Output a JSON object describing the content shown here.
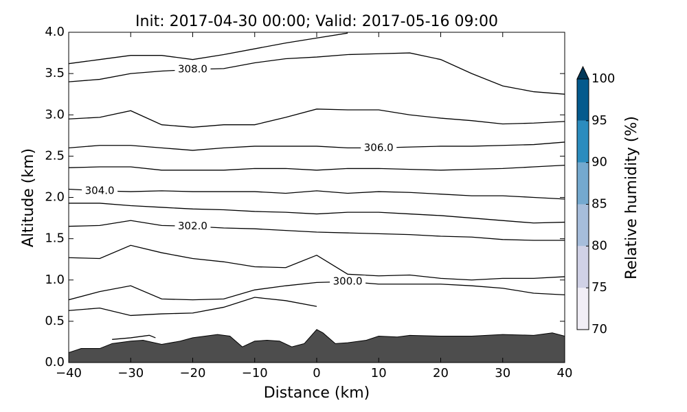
{
  "chart_data": {
    "type": "contour",
    "title": "Init: 2017-04-30 00:00; Valid: 2017-05-16 09:00",
    "xlabel": "Distance (km)",
    "ylabel": "Altitude (km)",
    "xlim": [
      -40,
      40
    ],
    "ylim": [
      0,
      4
    ],
    "xticks": [
      {
        "value": -40,
        "label": "−40"
      },
      {
        "value": -30,
        "label": "−30"
      },
      {
        "value": -20,
        "label": "−20"
      },
      {
        "value": -10,
        "label": "−10"
      },
      0,
      10,
      20,
      30,
      40
    ],
    "yticks": [
      {
        "value": 0,
        "label": "0.0"
      },
      {
        "value": 0.5,
        "label": "0.5"
      },
      {
        "value": 1,
        "label": "1.0"
      },
      {
        "value": 1.5,
        "label": "1.5"
      },
      {
        "value": 2,
        "label": "2.0"
      },
      {
        "value": 2.5,
        "label": "2.5"
      },
      {
        "value": 3,
        "label": "3.0"
      },
      {
        "value": 3.5,
        "label": "3.5"
      },
      {
        "value": 4,
        "label": "4.0"
      }
    ],
    "x": [
      -40,
      -35,
      -30,
      -25,
      -20,
      -15,
      -10,
      -5,
      0,
      5,
      10,
      15,
      20,
      25,
      30,
      35,
      40
    ],
    "line_color": "#000000",
    "series": [
      {
        "values": [
          3.62,
          3.67,
          3.72,
          3.72,
          3.67,
          3.73,
          3.8,
          3.87,
          3.93,
          3.99,
          null,
          null,
          null,
          null,
          null,
          null,
          null
        ]
      },
      {
        "name": "308.0",
        "values": [
          3.4,
          3.43,
          3.5,
          3.53,
          3.55,
          3.56,
          3.63,
          3.68,
          3.7,
          3.73,
          3.74,
          3.75,
          3.67,
          3.5,
          3.35,
          3.28,
          3.25
        ]
      },
      {
        "values": [
          2.95,
          2.97,
          3.05,
          2.88,
          2.85,
          2.88,
          2.88,
          2.97,
          3.07,
          3.06,
          3.06,
          3.0,
          2.96,
          2.93,
          2.89,
          2.9,
          2.92
        ]
      },
      {
        "name": "306.0",
        "values": [
          2.6,
          2.63,
          2.63,
          2.6,
          2.57,
          2.6,
          2.62,
          2.62,
          2.62,
          2.6,
          2.6,
          2.61,
          2.62,
          2.62,
          2.63,
          2.64,
          2.67
        ]
      },
      {
        "values": [
          2.36,
          2.37,
          2.37,
          2.33,
          2.33,
          2.33,
          2.35,
          2.35,
          2.33,
          2.35,
          2.35,
          2.34,
          2.33,
          2.34,
          2.35,
          2.37,
          2.39
        ]
      },
      {
        "name": "304.0",
        "values": [
          2.1,
          2.08,
          2.07,
          2.08,
          2.07,
          2.07,
          2.07,
          2.05,
          2.08,
          2.05,
          2.07,
          2.06,
          2.04,
          2.02,
          2.02,
          2.0,
          1.98
        ]
      },
      {
        "values": [
          1.93,
          1.93,
          1.9,
          1.88,
          1.86,
          1.85,
          1.83,
          1.82,
          1.8,
          1.82,
          1.82,
          1.8,
          1.78,
          1.75,
          1.72,
          1.69,
          1.7
        ]
      },
      {
        "name": "302.0",
        "values": [
          1.65,
          1.66,
          1.72,
          1.66,
          1.65,
          1.63,
          1.62,
          1.6,
          1.58,
          1.57,
          1.56,
          1.55,
          1.53,
          1.52,
          1.49,
          1.48,
          1.48
        ]
      },
      {
        "values": [
          1.27,
          1.26,
          1.42,
          1.33,
          1.26,
          1.22,
          1.16,
          1.15,
          1.3,
          1.07,
          1.05,
          1.06,
          1.02,
          1.0,
          1.02,
          1.02,
          1.04
        ]
      },
      {
        "name": "300.0",
        "values": [
          0.76,
          0.86,
          0.93,
          0.77,
          0.76,
          0.77,
          0.88,
          0.93,
          0.97,
          0.98,
          0.95,
          0.95,
          0.95,
          0.93,
          0.9,
          0.84,
          0.82
        ]
      },
      {
        "values": [
          0.63,
          0.66,
          0.57,
          0.59,
          0.6,
          0.67,
          0.79,
          0.75,
          0.68,
          null,
          null,
          null,
          null,
          null,
          null,
          null,
          null
        ]
      },
      {
        "x": [
          -33,
          -30,
          -27,
          -26
        ],
        "values": [
          0.28,
          0.3,
          0.33,
          0.3
        ]
      }
    ],
    "terrain": {
      "color": "#4d4d4d",
      "x": [
        -40,
        -38,
        -35,
        -33,
        -30,
        -28,
        -25,
        -22,
        -20,
        -18,
        -16,
        -14,
        -12,
        -10,
        -8,
        -6,
        -4,
        -2,
        0,
        1,
        3,
        5,
        8,
        10,
        13,
        15,
        20,
        25,
        30,
        35,
        38,
        40
      ],
      "values": [
        0.12,
        0.17,
        0.17,
        0.23,
        0.26,
        0.27,
        0.22,
        0.26,
        0.3,
        0.32,
        0.34,
        0.32,
        0.19,
        0.26,
        0.27,
        0.26,
        0.19,
        0.23,
        0.4,
        0.36,
        0.23,
        0.24,
        0.27,
        0.32,
        0.31,
        0.33,
        0.32,
        0.32,
        0.34,
        0.33,
        0.36,
        0.32
      ]
    },
    "colorbar": {
      "label": "Relative humidity (%)",
      "ticks": [
        70,
        75,
        80,
        85,
        90,
        95,
        100
      ],
      "colors": [
        "#f1eef6",
        "#d0d1e6",
        "#a6bddb",
        "#74a9cf",
        "#2b8cbe",
        "#045a8d"
      ],
      "extend_color": "#023858"
    }
  }
}
